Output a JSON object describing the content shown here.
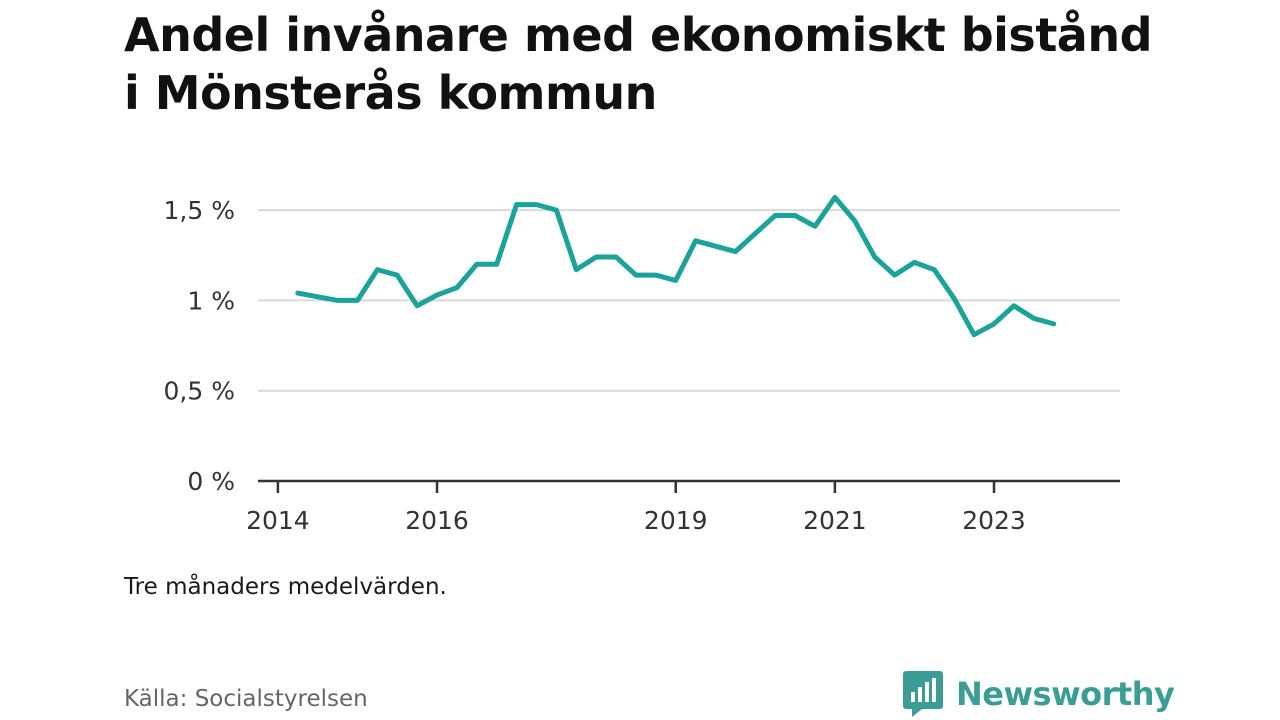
{
  "title": "Andel invånare med ekonomiskt bistånd i Mönsterås kommun",
  "note": "Tre månaders medelvärden.",
  "source": "Källa: Socialstyrelsen",
  "brand": {
    "name": "Newsworthy",
    "color": "#3a9e97",
    "icon": "bar-chart-speech-bubble-icon"
  },
  "chart_data": {
    "type": "line",
    "title": "Andel invånare med ekonomiskt bistånd i Mönsterås kommun",
    "xlabel": "",
    "ylabel": "",
    "y_unit": "%",
    "ylim": [
      0,
      1.6
    ],
    "xlim": [
      "2013-10",
      "2024-08"
    ],
    "yticks": [
      {
        "value": 0,
        "label": "0 %"
      },
      {
        "value": 0.5,
        "label": "0,5 %"
      },
      {
        "value": 1,
        "label": "1 %"
      },
      {
        "value": 1.5,
        "label": "1,5 %"
      }
    ],
    "xticks": [
      {
        "value": "2014-01",
        "label": "2014"
      },
      {
        "value": "2016-01",
        "label": "2016"
      },
      {
        "value": "2019-01",
        "label": "2019"
      },
      {
        "value": "2021-01",
        "label": "2021"
      },
      {
        "value": "2023-01",
        "label": "2023"
      }
    ],
    "grid": true,
    "legend": "none",
    "line_color": "#19a39b",
    "series": [
      {
        "x": [
          "2014-04",
          "2014-07",
          "2014-10",
          "2015-01",
          "2015-04",
          "2015-07",
          "2015-10",
          "2016-01",
          "2016-04",
          "2016-07",
          "2016-10",
          "2017-01",
          "2017-04",
          "2017-07",
          "2017-10",
          "2018-01",
          "2018-04",
          "2018-07",
          "2018-10",
          "2019-01",
          "2019-04",
          "2019-07",
          "2019-10",
          "2020-01",
          "2020-04",
          "2020-07",
          "2020-10",
          "2021-01",
          "2021-04",
          "2021-07",
          "2021-10",
          "2022-01",
          "2022-04",
          "2022-07",
          "2022-10",
          "2023-01",
          "2023-04",
          "2023-07",
          "2023-10"
        ],
        "y": [
          1.04,
          1.02,
          1.0,
          1.0,
          1.17,
          1.14,
          0.97,
          1.03,
          1.07,
          1.2,
          1.2,
          1.53,
          1.53,
          1.5,
          1.17,
          1.24,
          1.24,
          1.14,
          1.14,
          1.11,
          1.33,
          1.3,
          1.27,
          1.37,
          1.47,
          1.47,
          1.41,
          1.57,
          1.44,
          1.24,
          1.14,
          1.21,
          1.17,
          1.01,
          0.81,
          0.87,
          0.97,
          0.9,
          0.87
        ]
      }
    ]
  }
}
